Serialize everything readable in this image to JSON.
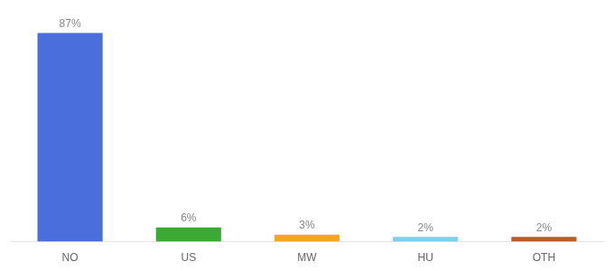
{
  "chart_data": {
    "type": "bar",
    "categories": [
      "NO",
      "US",
      "MW",
      "HU",
      "OTH"
    ],
    "values": [
      87,
      6,
      3,
      2,
      2
    ],
    "value_labels": [
      "87%",
      "6%",
      "3%",
      "2%",
      "2%"
    ],
    "colors": [
      "#4a6fdc",
      "#3aaa35",
      "#f5a623",
      "#7ecfee",
      "#b85c2c"
    ],
    "ylim": [
      0,
      97
    ],
    "data_labels": true,
    "tick_labels": "x",
    "grid": false
  }
}
